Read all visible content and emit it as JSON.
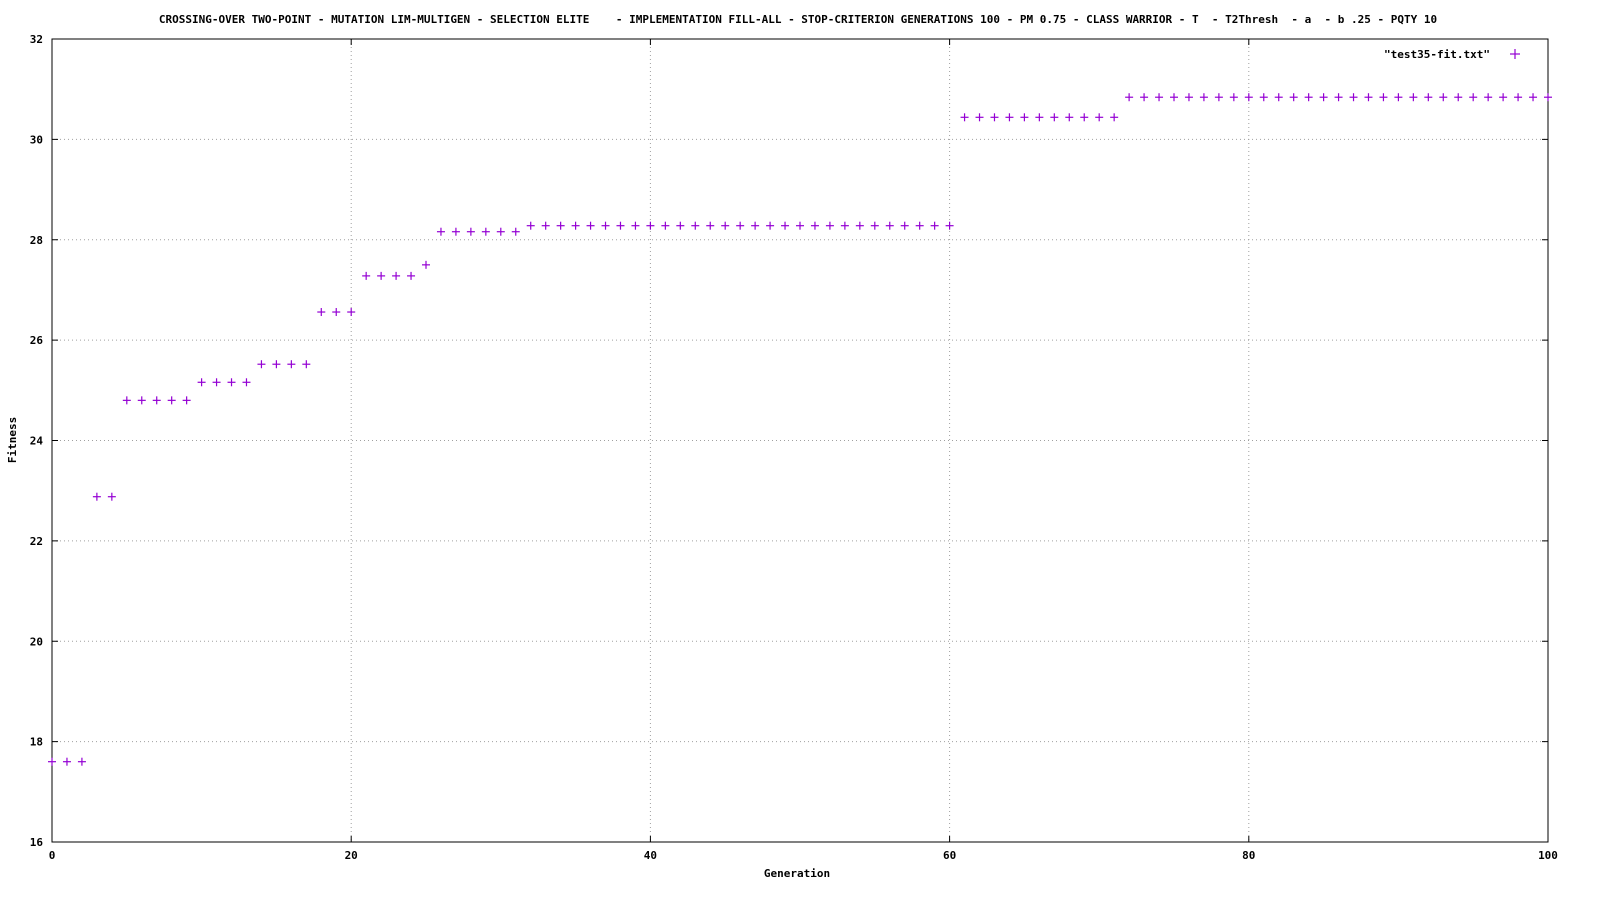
{
  "chart_data": {
    "type": "scatter",
    "title": "CROSSING-OVER TWO-POINT - MUTATION LIM-MULTIGEN - SELECTION ELITE    - IMPLEMENTATION FILL-ALL - STOP-CRITERION GENERATIONS 100 - PM 0.75 - CLASS WARRIOR - T  - T2Thresh  - a  - b .25 - PQTY 10",
    "xlabel": "Generation",
    "ylabel": "Fitness",
    "xlim": [
      0,
      100
    ],
    "ylim": [
      16,
      32
    ],
    "xticks": [
      0,
      20,
      40,
      60,
      80,
      100
    ],
    "yticks": [
      16,
      18,
      20,
      22,
      24,
      26,
      28,
      30,
      32
    ],
    "grid": true,
    "legend_position": "top-right",
    "series": [
      {
        "name": "\"test35-fit.txt\"",
        "color": "#9400d3",
        "marker": "plus",
        "x": [
          0,
          1,
          2,
          3,
          4,
          5,
          6,
          7,
          8,
          9,
          10,
          11,
          12,
          13,
          14,
          15,
          16,
          17,
          18,
          19,
          20,
          21,
          22,
          23,
          24,
          25,
          26,
          27,
          28,
          29,
          30,
          31,
          32,
          33,
          34,
          35,
          36,
          37,
          38,
          39,
          40,
          41,
          42,
          43,
          44,
          45,
          46,
          47,
          48,
          49,
          50,
          51,
          52,
          53,
          54,
          55,
          56,
          57,
          58,
          59,
          60,
          61,
          62,
          63,
          64,
          65,
          66,
          67,
          68,
          69,
          70,
          71,
          72,
          73,
          74,
          75,
          76,
          77,
          78,
          79,
          80,
          81,
          82,
          83,
          84,
          85,
          86,
          87,
          88,
          89,
          90,
          91,
          92,
          93,
          94,
          95,
          96,
          97,
          98,
          99,
          100
        ],
        "y": [
          17.6,
          17.6,
          17.6,
          22.88,
          22.88,
          24.8,
          24.8,
          24.8,
          24.8,
          24.8,
          25.16,
          25.16,
          25.16,
          25.16,
          25.52,
          25.52,
          25.52,
          25.52,
          26.56,
          26.56,
          26.56,
          27.28,
          27.28,
          27.28,
          27.28,
          27.5,
          28.16,
          28.16,
          28.16,
          28.16,
          28.16,
          28.16,
          28.28,
          28.28,
          28.28,
          28.28,
          28.28,
          28.28,
          28.28,
          28.28,
          28.28,
          28.28,
          28.28,
          28.28,
          28.28,
          28.28,
          28.28,
          28.28,
          28.28,
          28.28,
          28.28,
          28.28,
          28.28,
          28.28,
          28.28,
          28.28,
          28.28,
          28.28,
          28.28,
          28.28,
          28.28,
          30.44,
          30.44,
          30.44,
          30.44,
          30.44,
          30.44,
          30.44,
          30.44,
          30.44,
          30.44,
          30.44,
          30.84,
          30.84,
          30.84,
          30.84,
          30.84,
          30.84,
          30.84,
          30.84,
          30.84,
          30.84,
          30.84,
          30.84,
          30.84,
          30.84,
          30.84,
          30.84,
          30.84,
          30.84,
          30.84,
          30.84,
          30.84,
          30.84,
          30.84,
          30.84,
          30.84,
          30.84,
          30.84,
          30.84,
          30.84
        ]
      }
    ]
  }
}
